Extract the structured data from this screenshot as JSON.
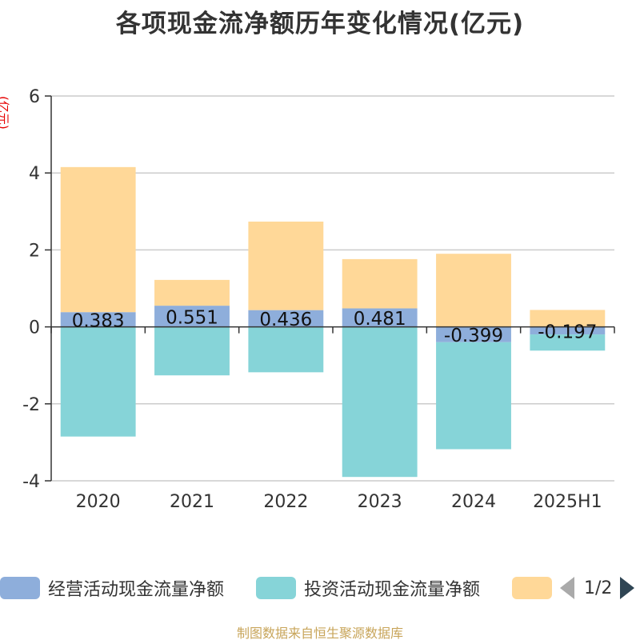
{
  "title": "各项现金流净额历年变化情况(亿元)",
  "y_unit_label": "(亿元)",
  "source_note": "制图数据来自恒生聚源数据库",
  "legend": {
    "items": [
      {
        "label": "经营活动现金流量净额",
        "color": "#8eaedb"
      },
      {
        "label": "投资活动现金流量净额",
        "color": "#86d4d8"
      },
      {
        "label": "",
        "color": "#ffd898"
      }
    ],
    "pager": "1/2"
  },
  "chart_data": {
    "type": "bar",
    "stacked": true,
    "categories": [
      "2020",
      "2021",
      "2022",
      "2023",
      "2024",
      "2025H1"
    ],
    "ylim": [
      -4,
      6
    ],
    "yticks": [
      "6",
      "4",
      "2",
      "0",
      "-2",
      "-4"
    ],
    "grid": true,
    "legend_position": "bottom",
    "series": [
      {
        "name": "经营活动现金流量净额",
        "color": "#8eaedb",
        "values": [
          0.383,
          0.551,
          0.436,
          0.481,
          -0.399,
          -0.197
        ],
        "labels": [
          "0.383",
          "0.551",
          "0.436",
          "0.481",
          "-0.399",
          "-0.197"
        ]
      },
      {
        "name": "投资活动现金流量净额",
        "color": "#86d4d8",
        "values": [
          -2.85,
          -1.26,
          -1.18,
          -3.9,
          -2.78,
          -0.42
        ]
      },
      {
        "color": "#ffd898",
        "values": [
          3.77,
          0.67,
          2.3,
          1.28,
          1.9,
          0.44
        ]
      }
    ]
  }
}
